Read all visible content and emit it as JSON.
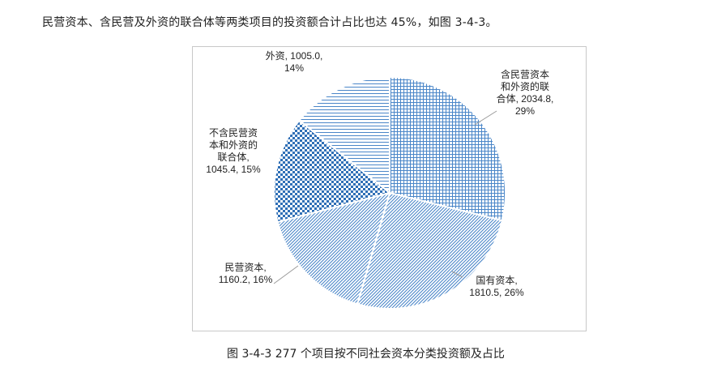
{
  "intro_text": "民营资本、含民营及外资的联合体等两类项目的投资额合计占比也达 45%，如图 3-4-3。",
  "figure_caption": "图 3-4-3   277 个项目按不同社会资本分类投资额及占比",
  "chart_data": {
    "type": "pie",
    "title": "",
    "start_angle_deg": 0,
    "direction": "clockwise",
    "slices": [
      {
        "label_lines": [
          "含民营资本",
          "和外资的联",
          "合体, 2034.8,",
          "29%"
        ],
        "name": "含民营资本和外资的联合体",
        "value": 2034.8,
        "percent": "29%",
        "pattern": "grid",
        "color": "#4a86c8"
      },
      {
        "label_lines": [
          "国有资本,",
          "1810.5, 26%"
        ],
        "name": "国有资本",
        "value": 1810.5,
        "percent": "26%",
        "pattern": "diag",
        "color": "#4a86c8"
      },
      {
        "label_lines": [
          "民营资本,",
          "1160.2, 16%"
        ],
        "name": "民营资本",
        "value": 1160.2,
        "percent": "16%",
        "pattern": "diag",
        "color": "#4a86c8"
      },
      {
        "label_lines": [
          "不含民营资",
          "本和外资的",
          "联合体,",
          "1045.4, 15%"
        ],
        "name": "不含民营资本和外资的联合体",
        "value": 1045.4,
        "percent": "15%",
        "pattern": "check",
        "color": "#2f6fb6"
      },
      {
        "label_lines": [
          "外资, 1005.0,",
          "14%"
        ],
        "name": "外资",
        "value": 1005.0,
        "percent": "14%",
        "pattern": "hlines",
        "color": "#4a86c8"
      }
    ]
  }
}
